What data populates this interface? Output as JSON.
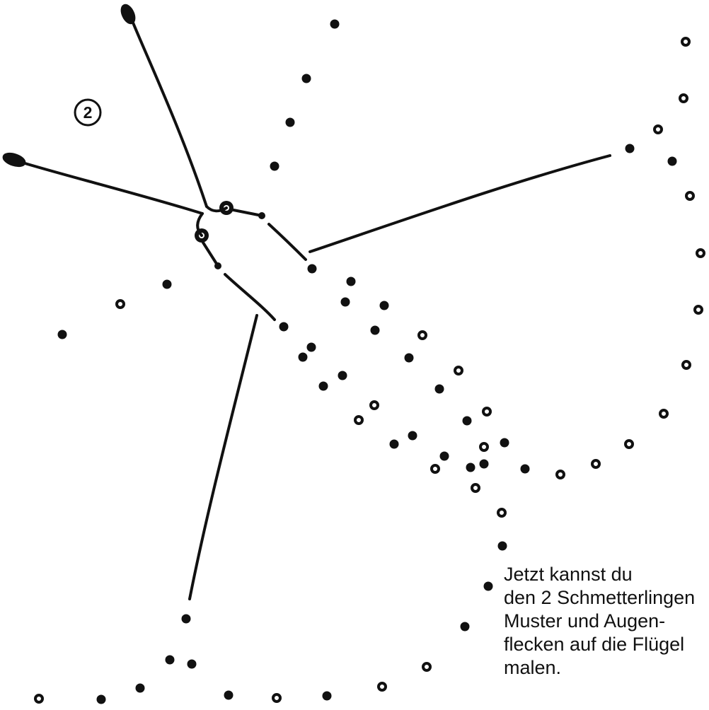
{
  "worksheet": {
    "step_number": "2",
    "instruction_lines": [
      "Jetzt kannst du",
      "den 2 Schmetterlingen",
      "Muster und Augen-",
      "flecken auf die Flügel",
      "malen."
    ],
    "colors": {
      "ink": "#111111",
      "paper": "#ffffff"
    }
  }
}
